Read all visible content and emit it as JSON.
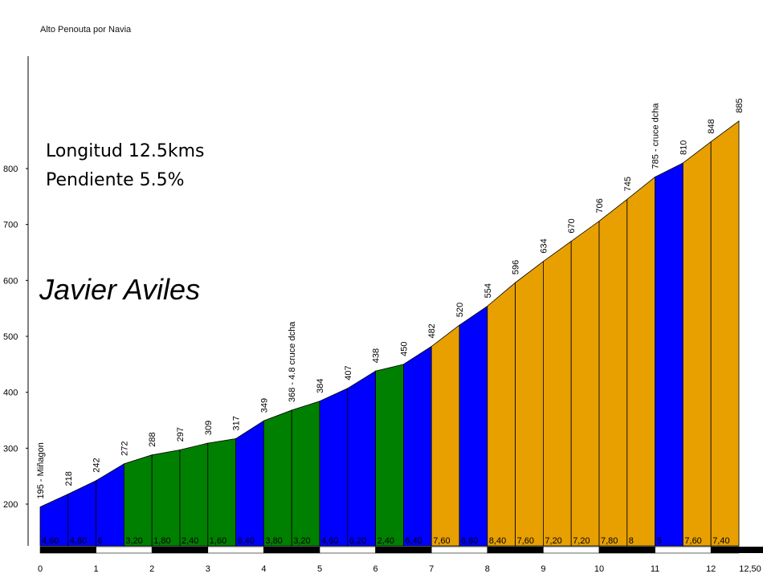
{
  "title": "Alto Penouta por Navia",
  "info": {
    "length": "Longitud 12.5kms",
    "gradient": "Pendiente 5.5%"
  },
  "author": "Javier Aviles",
  "chart_data": {
    "type": "area",
    "xlim": [
      0,
      12.5
    ],
    "ylim": [
      150,
      900
    ],
    "y_ticks": [
      200,
      300,
      400,
      500,
      600,
      700,
      800
    ],
    "x_ticks": [
      "0",
      "1",
      "2",
      "3",
      "4",
      "5",
      "6",
      "7",
      "8",
      "9",
      "10",
      "11",
      "12",
      "12,50"
    ],
    "points": [
      {
        "x": 0,
        "alt": 195,
        "label": "195 - Miñagon"
      },
      {
        "x": 0.5,
        "alt": 218,
        "label": "218"
      },
      {
        "x": 1,
        "alt": 242,
        "label": "242"
      },
      {
        "x": 1.5,
        "alt": 272,
        "label": "272"
      },
      {
        "x": 2,
        "alt": 288,
        "label": "288"
      },
      {
        "x": 2.5,
        "alt": 297,
        "label": "297"
      },
      {
        "x": 3,
        "alt": 309,
        "label": "309"
      },
      {
        "x": 3.5,
        "alt": 317,
        "label": "317"
      },
      {
        "x": 4,
        "alt": 349,
        "label": "349"
      },
      {
        "x": 4.5,
        "alt": 368,
        "label": "368 - 4.8 cruce dcha"
      },
      {
        "x": 5,
        "alt": 384,
        "label": "384"
      },
      {
        "x": 5.5,
        "alt": 407,
        "label": "407"
      },
      {
        "x": 6,
        "alt": 438,
        "label": "438"
      },
      {
        "x": 6.5,
        "alt": 450,
        "label": "450"
      },
      {
        "x": 7,
        "alt": 482,
        "label": "482"
      },
      {
        "x": 7.5,
        "alt": 520,
        "label": "520"
      },
      {
        "x": 8,
        "alt": 554,
        "label": "554"
      },
      {
        "x": 8.5,
        "alt": 596,
        "label": "596"
      },
      {
        "x": 9,
        "alt": 634,
        "label": "634"
      },
      {
        "x": 9.5,
        "alt": 670,
        "label": "670"
      },
      {
        "x": 10,
        "alt": 706,
        "label": "706"
      },
      {
        "x": 10.5,
        "alt": 745,
        "label": "745"
      },
      {
        "x": 11,
        "alt": 785,
        "label": "785 - cruce dcha"
      },
      {
        "x": 11.5,
        "alt": 810,
        "label": "810"
      },
      {
        "x": 12,
        "alt": 848,
        "label": "848"
      },
      {
        "x": 12.5,
        "alt": 885,
        "label": "885"
      }
    ],
    "segments": [
      {
        "grade": "4,60",
        "color": "blue"
      },
      {
        "grade": "4,80",
        "color": "blue"
      },
      {
        "grade": "6",
        "color": "blue"
      },
      {
        "grade": "3,20",
        "color": "green"
      },
      {
        "grade": "1,80",
        "color": "green"
      },
      {
        "grade": "2,40",
        "color": "green"
      },
      {
        "grade": "1,60",
        "color": "green"
      },
      {
        "grade": "6,40",
        "color": "blue"
      },
      {
        "grade": "3,80",
        "color": "green"
      },
      {
        "grade": "3,20",
        "color": "green"
      },
      {
        "grade": "4,60",
        "color": "blue"
      },
      {
        "grade": "6,20",
        "color": "blue"
      },
      {
        "grade": "2,40",
        "color": "green"
      },
      {
        "grade": "6,40",
        "color": "blue"
      },
      {
        "grade": "7,60",
        "color": "orange"
      },
      {
        "grade": "6,80",
        "color": "blue"
      },
      {
        "grade": "8,40",
        "color": "orange"
      },
      {
        "grade": "7,60",
        "color": "orange"
      },
      {
        "grade": "7,20",
        "color": "orange"
      },
      {
        "grade": "7,20",
        "color": "orange"
      },
      {
        "grade": "7,80",
        "color": "orange"
      },
      {
        "grade": "8",
        "color": "orange"
      },
      {
        "grade": "5",
        "color": "blue"
      },
      {
        "grade": "7,60",
        "color": "orange"
      },
      {
        "grade": "7,40",
        "color": "orange"
      }
    ],
    "colors": {
      "blue": "#0000ff",
      "green": "#008000",
      "orange": "#e8a000"
    }
  }
}
